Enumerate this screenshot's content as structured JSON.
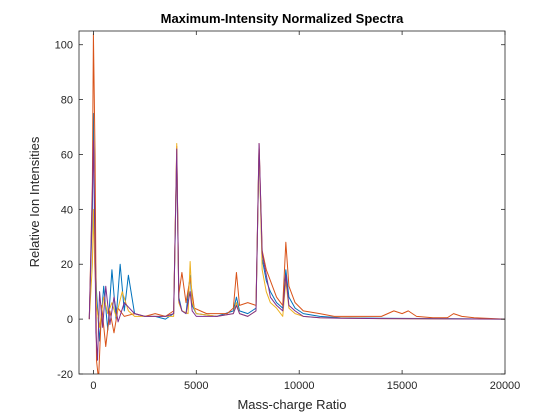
{
  "chart_data": {
    "type": "line",
    "title": "Maximum-Intensity Normalized Spectra",
    "xlabel": "Mass-charge Ratio",
    "ylabel": "Relative Ion Intensities",
    "xlim": [
      -700,
      20000
    ],
    "ylim": [
      -20,
      105
    ],
    "x_ticks": [
      0,
      5000,
      10000,
      15000,
      20000
    ],
    "x_tick_labels": [
      "0",
      "5000",
      "10000",
      "15000",
      "20000"
    ],
    "y_ticks": [
      -20,
      0,
      20,
      40,
      60,
      80,
      100
    ],
    "y_tick_labels": [
      "-20",
      "0",
      "20",
      "40",
      "60",
      "80",
      "100"
    ],
    "grid": false,
    "legend": "none",
    "series": [
      {
        "color": "#0072BD",
        "points": [
          [
            -200,
            0
          ],
          [
            -50,
            40
          ],
          [
            0,
            75
          ],
          [
            60,
            30
          ],
          [
            150,
            10
          ],
          [
            300,
            -8
          ],
          [
            500,
            12
          ],
          [
            700,
            -4
          ],
          [
            900,
            18
          ],
          [
            1100,
            0
          ],
          [
            1300,
            20
          ],
          [
            1500,
            3
          ],
          [
            1700,
            16
          ],
          [
            2000,
            2
          ],
          [
            2500,
            1
          ],
          [
            3000,
            1
          ],
          [
            3500,
            0
          ],
          [
            3900,
            2
          ],
          [
            4050,
            60
          ],
          [
            4150,
            8
          ],
          [
            4300,
            3
          ],
          [
            4500,
            2
          ],
          [
            4700,
            16
          ],
          [
            4800,
            5
          ],
          [
            5000,
            2
          ],
          [
            6000,
            1
          ],
          [
            6800,
            3
          ],
          [
            6950,
            8
          ],
          [
            7100,
            3
          ],
          [
            7500,
            2
          ],
          [
            7900,
            4
          ],
          [
            8050,
            62
          ],
          [
            8200,
            22
          ],
          [
            8400,
            14
          ],
          [
            8600,
            10
          ],
          [
            8900,
            6
          ],
          [
            9200,
            4
          ],
          [
            9350,
            18
          ],
          [
            9500,
            8
          ],
          [
            9800,
            4
          ],
          [
            10200,
            2
          ],
          [
            11000,
            1
          ],
          [
            12000,
            0.5
          ],
          [
            14000,
            0.3
          ],
          [
            17000,
            0.2
          ],
          [
            20000,
            0
          ]
        ]
      },
      {
        "color": "#D95319",
        "points": [
          [
            -200,
            0
          ],
          [
            -50,
            50
          ],
          [
            0,
            104
          ],
          [
            80,
            60
          ],
          [
            150,
            -15
          ],
          [
            250,
            -22
          ],
          [
            400,
            5
          ],
          [
            600,
            -10
          ],
          [
            800,
            3
          ],
          [
            1000,
            -5
          ],
          [
            1200,
            4
          ],
          [
            1500,
            1
          ],
          [
            2000,
            2
          ],
          [
            2500,
            1
          ],
          [
            3000,
            2
          ],
          [
            3500,
            1
          ],
          [
            3900,
            3
          ],
          [
            4050,
            63
          ],
          [
            4150,
            9
          ],
          [
            4300,
            17
          ],
          [
            4500,
            6
          ],
          [
            4700,
            15
          ],
          [
            4900,
            4
          ],
          [
            5500,
            2
          ],
          [
            6500,
            2
          ],
          [
            6800,
            4
          ],
          [
            6950,
            17
          ],
          [
            7100,
            5
          ],
          [
            7500,
            6
          ],
          [
            7900,
            5
          ],
          [
            8050,
            64
          ],
          [
            8200,
            25
          ],
          [
            8400,
            18
          ],
          [
            8600,
            14
          ],
          [
            8900,
            8
          ],
          [
            9200,
            5
          ],
          [
            9350,
            28
          ],
          [
            9500,
            12
          ],
          [
            9800,
            6
          ],
          [
            10200,
            3
          ],
          [
            11000,
            2
          ],
          [
            11700,
            1
          ],
          [
            12500,
            1
          ],
          [
            13500,
            1
          ],
          [
            14000,
            1
          ],
          [
            14300,
            2
          ],
          [
            14600,
            3
          ],
          [
            15000,
            2
          ],
          [
            15300,
            3
          ],
          [
            15700,
            1
          ],
          [
            16500,
            0.5
          ],
          [
            17200,
            0.5
          ],
          [
            17500,
            2
          ],
          [
            17900,
            1
          ],
          [
            18500,
            0.5
          ],
          [
            20000,
            0
          ]
        ]
      },
      {
        "color": "#EDB120",
        "points": [
          [
            -200,
            0
          ],
          [
            -50,
            20
          ],
          [
            0,
            40
          ],
          [
            60,
            20
          ],
          [
            150,
            5
          ],
          [
            300,
            -3
          ],
          [
            500,
            8
          ],
          [
            700,
            2
          ],
          [
            900,
            6
          ],
          [
            1100,
            1
          ],
          [
            1400,
            10
          ],
          [
            1700,
            3
          ],
          [
            2000,
            1
          ],
          [
            3000,
            1
          ],
          [
            3900,
            1
          ],
          [
            4050,
            64
          ],
          [
            4150,
            6
          ],
          [
            4300,
            3
          ],
          [
            4600,
            2
          ],
          [
            4700,
            21
          ],
          [
            4800,
            6
          ],
          [
            5000,
            2
          ],
          [
            6000,
            1
          ],
          [
            6800,
            2
          ],
          [
            6950,
            6
          ],
          [
            7100,
            2
          ],
          [
            7500,
            1
          ],
          [
            7900,
            3
          ],
          [
            8050,
            62
          ],
          [
            8200,
            18
          ],
          [
            8400,
            10
          ],
          [
            8600,
            6
          ],
          [
            8900,
            4
          ],
          [
            9200,
            1
          ],
          [
            9350,
            14
          ],
          [
            9500,
            4
          ],
          [
            9800,
            2
          ],
          [
            10200,
            1
          ],
          [
            11000,
            0.5
          ],
          [
            14000,
            0.2
          ],
          [
            20000,
            0
          ]
        ]
      },
      {
        "color": "#7E2F8E",
        "points": [
          [
            -200,
            0
          ],
          [
            -50,
            45
          ],
          [
            0,
            65
          ],
          [
            60,
            40
          ],
          [
            120,
            -5
          ],
          [
            200,
            -15
          ],
          [
            300,
            10
          ],
          [
            450,
            -3
          ],
          [
            600,
            12
          ],
          [
            800,
            -2
          ],
          [
            1000,
            8
          ],
          [
            1200,
            -1
          ],
          [
            1500,
            6
          ],
          [
            2000,
            2
          ],
          [
            2500,
            1
          ],
          [
            3000,
            1
          ],
          [
            3500,
            1
          ],
          [
            3900,
            2
          ],
          [
            4050,
            62
          ],
          [
            4150,
            7
          ],
          [
            4300,
            3
          ],
          [
            4500,
            2
          ],
          [
            4700,
            10
          ],
          [
            4800,
            3
          ],
          [
            5000,
            1
          ],
          [
            6000,
            1
          ],
          [
            6800,
            2
          ],
          [
            6950,
            5
          ],
          [
            7100,
            2
          ],
          [
            7500,
            1
          ],
          [
            7900,
            3
          ],
          [
            8050,
            64
          ],
          [
            8200,
            24
          ],
          [
            8400,
            16
          ],
          [
            8600,
            8
          ],
          [
            8900,
            5
          ],
          [
            9200,
            3
          ],
          [
            9350,
            16
          ],
          [
            9500,
            5
          ],
          [
            9800,
            3
          ],
          [
            10200,
            1
          ],
          [
            11000,
            0.5
          ],
          [
            12000,
            0.3
          ],
          [
            14000,
            0.2
          ],
          [
            20000,
            0
          ]
        ]
      }
    ]
  }
}
